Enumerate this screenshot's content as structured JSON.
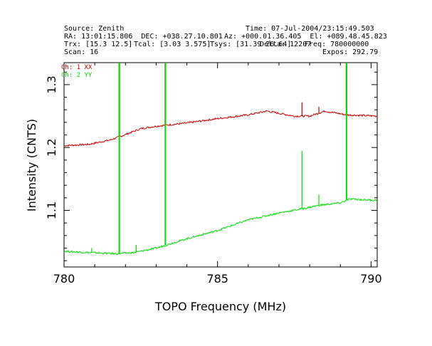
{
  "header": {
    "source": "Source: Zenith",
    "time": "Time: 07-Jul-2004/23:15:49.503",
    "ra_dec": "RA: 13:01:15.806  DEC: +038.27.10.801",
    "az_el": "Az: +000.01.36.405  El: +089.48.45.823",
    "trx": "Trx: [15.3 12.5]",
    "tcal": "Tcal: [3.03 3.575]",
    "tsys": "Tsys: [31.39 26.64]",
    "delta": "Delta: 12207",
    "freq": "Freq: 780000000",
    "scan": "Scan: 16",
    "expos": "Expos: 292.79"
  },
  "chart_data": {
    "type": "line",
    "title": "",
    "xlabel": "TOPO Frequency (MHz)",
    "ylabel": "Intensity (CNTS)",
    "xlim": [
      780,
      790.2
    ],
    "ylim": [
      1.01,
      1.335
    ],
    "xticks": [
      780,
      785,
      790
    ],
    "yticks": [
      1.1,
      1.2,
      1.3
    ],
    "grid": false,
    "legend_position": "top-left",
    "series": [
      {
        "name": "Ch: 1 XX",
        "color": "#cc0000",
        "baseline": [
          [
            780.0,
            1.203
          ],
          [
            780.8,
            1.205
          ],
          [
            781.5,
            1.212
          ],
          [
            781.8,
            1.217
          ],
          [
            782.5,
            1.23
          ],
          [
            783.0,
            1.234
          ],
          [
            784.0,
            1.239
          ],
          [
            785.0,
            1.246
          ],
          [
            786.0,
            1.252
          ],
          [
            786.6,
            1.258
          ],
          [
            787.5,
            1.25
          ],
          [
            788.0,
            1.25
          ],
          [
            788.5,
            1.258
          ],
          [
            789.2,
            1.252
          ],
          [
            790.2,
            1.25
          ]
        ],
        "spikes": [
          [
            781.8,
            1.335
          ],
          [
            783.3,
            1.335
          ],
          [
            787.75,
            1.272
          ],
          [
            788.3,
            1.265
          ],
          [
            789.2,
            1.335
          ]
        ]
      },
      {
        "name": "Ch: 2 YY",
        "color": "#00dd00",
        "baseline": [
          [
            780.0,
            1.035
          ],
          [
            780.8,
            1.033
          ],
          [
            781.7,
            1.031
          ],
          [
            782.3,
            1.033
          ],
          [
            783.0,
            1.04
          ],
          [
            784.0,
            1.055
          ],
          [
            785.0,
            1.068
          ],
          [
            786.0,
            1.085
          ],
          [
            787.0,
            1.096
          ],
          [
            787.8,
            1.103
          ],
          [
            788.3,
            1.108
          ],
          [
            789.0,
            1.112
          ],
          [
            789.3,
            1.118
          ],
          [
            790.2,
            1.116
          ]
        ],
        "spikes": [
          [
            780.9,
            1.04
          ],
          [
            781.8,
            1.335
          ],
          [
            782.35,
            1.045
          ],
          [
            783.3,
            1.335
          ],
          [
            787.75,
            1.195
          ],
          [
            788.3,
            1.125
          ],
          [
            789.2,
            1.335
          ]
        ]
      }
    ]
  }
}
